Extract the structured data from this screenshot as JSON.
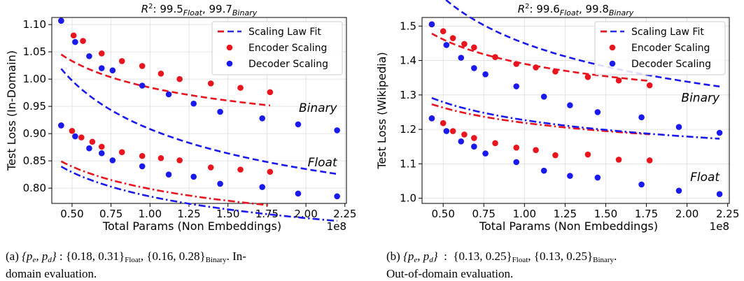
{
  "charts": [
    {
      "id": "a",
      "title": {
        "base": "R",
        "sup": "2",
        "text": ": 99.5",
        "sub1": "Float",
        "mid": ", 99.7",
        "sub2": "Binary"
      },
      "ylabel": "Test Loss (In-Domain)",
      "xlabel": "Total Params (Non Embeddings)",
      "x_exponent": "1e8",
      "xlim": [
        0.37,
        2.26
      ],
      "ylim": [
        0.772,
        1.113
      ],
      "xticks": [
        "0.50",
        "0.75",
        "1.00",
        "1.25",
        "1.50",
        "1.75",
        "2.00",
        "2.25"
      ],
      "xtick_values": [
        0.5,
        0.75,
        1.0,
        1.25,
        1.5,
        1.75,
        2.0,
        2.25
      ],
      "yticks": [
        "0.80",
        "0.85",
        "0.90",
        "0.95",
        "1.00",
        "1.05",
        "1.10"
      ],
      "ytick_values": [
        0.8,
        0.85,
        0.9,
        0.95,
        1.0,
        1.05,
        1.1
      ],
      "annotations": [
        {
          "text": "Binary",
          "x": 2.2,
          "y": 0.94
        },
        {
          "text": "Float",
          "x": 2.2,
          "y": 0.84
        }
      ]
    },
    {
      "id": "b",
      "title": {
        "base": "R",
        "sup": "2",
        "text": ": 99.6",
        "sub1": "Float",
        "mid": ", 99.8",
        "sub2": "Binary"
      },
      "ylabel": "Test Loss (Wikipedia)",
      "xlabel": "Total Params (Non Embeddings)",
      "x_exponent": "1e8",
      "xlim": [
        0.37,
        2.26
      ],
      "ylim": [
        0.985,
        1.525
      ],
      "xticks": [
        "0.50",
        "0.75",
        "1.00",
        "1.25",
        "1.50",
        "1.75",
        "2.00",
        "2.25"
      ],
      "xtick_values": [
        0.5,
        0.75,
        1.0,
        1.25,
        1.5,
        1.75,
        2.0,
        2.25
      ],
      "yticks": [
        "1.0",
        "1.1",
        "1.2",
        "1.3",
        "1.4",
        "1.5"
      ],
      "ytick_values": [
        1.0,
        1.1,
        1.2,
        1.3,
        1.4,
        1.5
      ],
      "annotations": [
        {
          "text": "Binary",
          "x": 2.2,
          "y": 1.28
        },
        {
          "text": "Float",
          "x": 2.2,
          "y": 1.05
        }
      ]
    }
  ],
  "legend": {
    "position": "top-right",
    "items": [
      {
        "label": "Scaling Law Fit",
        "kind": "dashed-line",
        "color": "#2c2ce6"
      },
      {
        "label": "Encoder Scaling",
        "kind": "marker",
        "color": "#e8141e"
      },
      {
        "label": "Decoder Scaling",
        "kind": "marker",
        "color": "#1a1aee"
      }
    ]
  },
  "colors": {
    "encoder": "#e8141e",
    "decoder": "#1a1aee",
    "grid": "#dddddd"
  },
  "chart_data": [
    {
      "type": "scatter",
      "title": "R^2 : 99.5_Float, 99.7_Binary",
      "xlabel": "Total Params (Non Embeddings)",
      "ylabel": "Test Loss (In-Domain)",
      "x_units": "1e8",
      "xlim": [
        0.37,
        2.26
      ],
      "ylim": [
        0.772,
        1.113
      ],
      "grid": true,
      "series": [
        {
          "name": "Encoder Scaling",
          "group": "Binary",
          "color": "#e8141e",
          "x": [
            0.43,
            0.51,
            0.57,
            0.69,
            0.82,
            0.95,
            1.07,
            1.19,
            1.39,
            1.58,
            1.77
          ],
          "y": [
            1.107,
            1.08,
            1.07,
            1.047,
            1.033,
            1.024,
            1.01,
            1.0,
            0.992,
            0.984,
            0.976
          ]
        },
        {
          "name": "Decoder Scaling",
          "group": "Binary",
          "color": "#1a1aee",
          "x": [
            0.43,
            0.52,
            0.61,
            0.69,
            0.76,
            0.95,
            1.12,
            1.28,
            1.45,
            1.72,
            1.95,
            2.2
          ],
          "y": [
            1.107,
            1.068,
            1.042,
            1.02,
            1.016,
            0.988,
            0.972,
            0.955,
            0.94,
            0.928,
            0.917,
            0.906
          ]
        },
        {
          "name": "Encoder Scaling",
          "group": "Float",
          "color": "#e8141e",
          "x": [
            0.43,
            0.5,
            0.56,
            0.63,
            0.69,
            0.82,
            0.95,
            1.07,
            1.19,
            1.39,
            1.58,
            1.77
          ],
          "y": [
            0.915,
            0.905,
            0.893,
            0.885,
            0.876,
            0.866,
            0.859,
            0.855,
            0.851,
            0.838,
            0.834,
            0.83
          ]
        },
        {
          "name": "Decoder Scaling",
          "group": "Float",
          "color": "#1a1aee",
          "x": [
            0.43,
            0.52,
            0.61,
            0.69,
            0.76,
            0.95,
            1.12,
            1.28,
            1.45,
            1.72,
            1.95,
            2.2
          ],
          "y": [
            0.915,
            0.895,
            0.873,
            0.864,
            0.851,
            0.84,
            0.825,
            0.821,
            0.808,
            0.802,
            0.79,
            0.785
          ]
        }
      ],
      "fits": [
        {
          "group": "Binary",
          "for": "Encoder Scaling",
          "color": "#e8141e",
          "style": "dashed",
          "a": 0.2028,
          "p": 0.31,
          "c": 0.7817
        },
        {
          "group": "Binary",
          "for": "Decoder Scaling",
          "color": "#1a1aee",
          "style": "dashed",
          "a": 0.4153,
          "p": 0.28,
          "c": 0.493
        },
        {
          "group": "Float",
          "for": "Encoder Scaling",
          "color": "#e8141e",
          "style": "dashdot",
          "a": 0.3086,
          "p": 0.18,
          "c": 0.49
        },
        {
          "group": "Float",
          "for": "Decoder Scaling",
          "color": "#1a1aee",
          "style": "dashdot",
          "a": 0.3788,
          "p": 0.16,
          "c": 0.406
        }
      ]
    },
    {
      "type": "scatter",
      "title": "R^2 : 99.6_Float, 99.8_Binary",
      "xlabel": "Total Params (Non Embeddings)",
      "ylabel": "Test Loss (Wikipedia)",
      "x_units": "1e8",
      "xlim": [
        0.37,
        2.26
      ],
      "ylim": [
        0.985,
        1.525
      ],
      "grid": true,
      "series": [
        {
          "name": "Encoder Scaling",
          "group": "Binary",
          "color": "#e8141e",
          "x": [
            0.43,
            0.5,
            0.56,
            0.63,
            0.69,
            0.82,
            0.95,
            1.07,
            1.19,
            1.39,
            1.58,
            1.77
          ],
          "y": [
            1.505,
            1.485,
            1.465,
            1.448,
            1.438,
            1.41,
            1.39,
            1.38,
            1.368,
            1.352,
            1.342,
            1.328
          ]
        },
        {
          "name": "Decoder Scaling",
          "group": "Binary",
          "color": "#1a1aee",
          "x": [
            0.43,
            0.52,
            0.61,
            0.69,
            0.76,
            0.95,
            1.12,
            1.28,
            1.45,
            1.72,
            1.95,
            2.2
          ],
          "y": [
            1.505,
            1.445,
            1.408,
            1.378,
            1.36,
            1.325,
            1.295,
            1.27,
            1.25,
            1.235,
            1.207,
            1.19
          ]
        },
        {
          "name": "Encoder Scaling",
          "group": "Float",
          "color": "#e8141e",
          "x": [
            0.43,
            0.5,
            0.56,
            0.63,
            0.69,
            0.82,
            0.95,
            1.07,
            1.19,
            1.39,
            1.58,
            1.77
          ],
          "y": [
            1.232,
            1.218,
            1.195,
            1.185,
            1.175,
            1.16,
            1.147,
            1.14,
            1.125,
            1.127,
            1.112,
            1.11
          ]
        },
        {
          "name": "Decoder Scaling",
          "group": "Float",
          "color": "#1a1aee",
          "x": [
            0.43,
            0.52,
            0.61,
            0.69,
            0.76,
            0.95,
            1.12,
            1.28,
            1.45,
            1.72,
            1.95,
            2.2
          ],
          "y": [
            1.232,
            1.195,
            1.165,
            1.15,
            1.13,
            1.105,
            1.08,
            1.065,
            1.06,
            1.04,
            1.022,
            1.012
          ]
        }
      ],
      "fits": [
        {
          "group": "Binary",
          "for": "Encoder Scaling",
          "color": "#e8141e",
          "style": "dashed",
          "a": 0.3744,
          "p": 0.25,
          "c": 1.016
        },
        {
          "group": "Binary",
          "for": "Decoder Scaling",
          "color": "#1a1aee",
          "style": "dashed",
          "a": 0.7022,
          "p": 0.25,
          "c": 0.748
        },
        {
          "group": "Float",
          "for": "Encoder Scaling",
          "color": "#e8141e",
          "style": "dashdot",
          "a": 0.467,
          "p": 0.13,
          "c": 0.752
        },
        {
          "group": "Float",
          "for": "Decoder Scaling",
          "color": "#1a1aee",
          "style": "dashdot",
          "a": 0.555,
          "p": 0.13,
          "c": 0.672
        }
      ]
    }
  ],
  "captions": [
    {
      "label": "(a)",
      "pe_pd": "{p",
      "formula_a": "{0.18, 0.31}",
      "sub_a": "Float",
      "formula_b": "{0.16, 0.28}",
      "sub_b": "Binary",
      "tail1": ". In-",
      "line2": "domain evaluation."
    },
    {
      "label": "(b)",
      "pe_pd": "{p",
      "formula_a": "{0.13, 0.25}",
      "sub_a": "Float",
      "formula_b": "{0.13, 0.25}",
      "sub_b": "Binary",
      "tail1": ".",
      "line2": "Out-of-domain evaluation."
    }
  ]
}
